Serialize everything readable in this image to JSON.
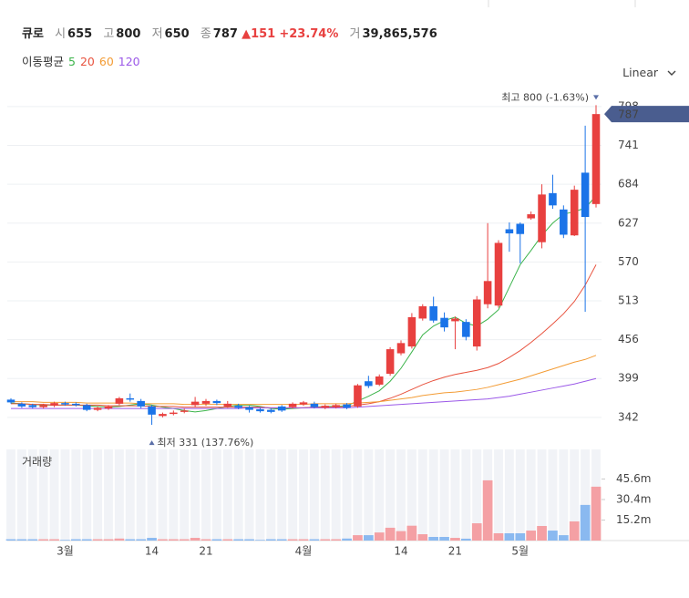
{
  "header": {
    "name": "큐로",
    "open_label": "시",
    "open": "655",
    "high_label": "고",
    "high": "800",
    "low_label": "저",
    "low": "650",
    "close_label": "종",
    "close": "787",
    "change": "151",
    "change_pct": "+23.74%",
    "volume_label": "거",
    "volume": "39,865,576"
  },
  "ma_label": "이동평균",
  "scale_toggle": "Linear",
  "chart_data": {
    "type": "candlestick",
    "categories": [
      null,
      null,
      null,
      null,
      null,
      "3월",
      null,
      null,
      null,
      null,
      null,
      null,
      null,
      "14",
      null,
      null,
      null,
      null,
      "21",
      null,
      null,
      null,
      null,
      null,
      null,
      null,
      null,
      "4월",
      null,
      null,
      null,
      null,
      null,
      null,
      null,
      null,
      "14",
      null,
      null,
      null,
      null,
      "21",
      null,
      null,
      null,
      null,
      null,
      "5월",
      null,
      null,
      null,
      null,
      null,
      null,
      null
    ],
    "open": [
      368,
      362,
      360,
      357,
      359,
      363,
      362,
      360,
      353,
      355,
      362,
      370,
      366,
      358,
      344,
      347,
      350,
      360,
      362,
      366,
      358,
      359,
      357,
      354,
      353,
      358,
      357,
      361,
      362,
      356,
      357,
      361,
      358,
      395,
      390,
      406,
      436,
      446,
      487,
      505,
      488,
      483,
      482,
      446,
      508,
      506,
      618,
      626,
      634,
      599,
      671,
      647,
      609,
      701,
      655
    ],
    "high": [
      370,
      364,
      362,
      362,
      365,
      365,
      364,
      362,
      358,
      360,
      372,
      377,
      369,
      360,
      349,
      352,
      355,
      372,
      369,
      368,
      366,
      362,
      359,
      356,
      355,
      360,
      364,
      366,
      365,
      361,
      362,
      363,
      391,
      403,
      405,
      445,
      455,
      495,
      508,
      519,
      496,
      490,
      486,
      520,
      627,
      602,
      628,
      628,
      644,
      684,
      698,
      653,
      682,
      770,
      800
    ],
    "low": [
      362,
      356,
      355,
      355,
      357,
      359,
      358,
      351,
      351,
      353,
      360,
      365,
      355,
      331,
      342,
      345,
      348,
      357,
      359,
      360,
      356,
      354,
      349,
      349,
      348,
      350,
      355,
      359,
      355,
      354,
      355,
      354,
      356,
      385,
      388,
      403,
      433,
      443,
      484,
      481,
      468,
      442,
      455,
      440,
      502,
      503,
      585,
      568,
      632,
      590,
      648,
      605,
      608,
      497,
      650
    ],
    "close": [
      364,
      358,
      357,
      360,
      363,
      361,
      360,
      353,
      356,
      358,
      370,
      368,
      358,
      346,
      347,
      349,
      352,
      365,
      366,
      363,
      362,
      356,
      353,
      351,
      350,
      352,
      362,
      364,
      357,
      359,
      360,
      356,
      389,
      388,
      402,
      442,
      451,
      489,
      505,
      484,
      474,
      487,
      460,
      515,
      542,
      598,
      612,
      611,
      640,
      669,
      653,
      610,
      676,
      636,
      787
    ],
    "up_color": "#e8403f",
    "down_color": "#1a73e8",
    "volume_up_color": "#f4a0a4",
    "volume_down_color": "#8ab9f0",
    "volume": [
      1,
      1,
      1,
      1,
      1,
      0.5,
      1,
      1,
      1,
      1,
      1.5,
      1,
      1,
      2,
      1,
      1,
      1,
      2,
      1,
      1,
      1,
      1,
      1,
      0.5,
      1,
      1,
      1,
      1,
      1,
      1,
      1,
      1.5,
      4,
      4,
      6,
      9.5,
      7,
      11,
      4.7,
      2.7,
      2.7,
      2,
      1.4,
      12.8,
      44.6,
      5.4,
      5.4,
      5.4,
      7.4,
      10.8,
      7.4,
      4,
      14.2,
      26.4,
      39.9
    ],
    "moving_averages": [
      {
        "name": "5",
        "color": "#3cb44b",
        "values": [
          363,
          362,
          361,
          360,
          360,
          360,
          360,
          359,
          358,
          357,
          358,
          360,
          362,
          360,
          357,
          355,
          352,
          350,
          352,
          355,
          358,
          360,
          360,
          358,
          355,
          354,
          355,
          356,
          357,
          358,
          358,
          359,
          366,
          373,
          381,
          395,
          414,
          438,
          463,
          476,
          484,
          489,
          480,
          476,
          486,
          500,
          533,
          566,
          587,
          609,
          627,
          640,
          644,
          649,
          667
        ]
      },
      {
        "name": "20",
        "color": "#e8533f",
        "values": [
          362,
          362,
          361,
          361,
          360,
          360,
          360,
          360,
          360,
          359,
          359,
          359,
          359,
          358,
          358,
          358,
          357,
          357,
          357,
          357,
          357,
          357,
          357,
          357,
          356,
          356,
          356,
          356,
          357,
          357,
          357,
          358,
          360,
          362,
          365,
          370,
          376,
          383,
          390,
          396,
          401,
          405,
          408,
          411,
          415,
          421,
          430,
          440,
          452,
          465,
          479,
          494,
          512,
          536,
          566
        ]
      },
      {
        "name": "60",
        "color": "#f39c35",
        "values": [
          365,
          365,
          365,
          364,
          364,
          364,
          364,
          363,
          363,
          363,
          363,
          363,
          362,
          362,
          362,
          362,
          361,
          361,
          361,
          361,
          361,
          361,
          361,
          361,
          361,
          361,
          361,
          361,
          362,
          362,
          362,
          362,
          363,
          364,
          365,
          367,
          369,
          371,
          374,
          376,
          378,
          379,
          381,
          383,
          386,
          390,
          394,
          398,
          403,
          408,
          413,
          418,
          423,
          427,
          433
        ]
      },
      {
        "name": "120",
        "color": "#9b59e8",
        "values": [
          355,
          355,
          355,
          355,
          355,
          355,
          355,
          355,
          355,
          355,
          355,
          355,
          355,
          355,
          355,
          355,
          355,
          355,
          355,
          355,
          355,
          355,
          356,
          356,
          356,
          356,
          356,
          356,
          356,
          356,
          356,
          356,
          357,
          358,
          359,
          360,
          361,
          362,
          363,
          364,
          365,
          366,
          367,
          368,
          369,
          371,
          373,
          376,
          379,
          382,
          385,
          388,
          391,
          395,
          399
        ]
      }
    ],
    "ylim": [
      303,
      834
    ],
    "yticks": [
      342,
      399,
      456,
      513,
      570,
      627,
      684,
      741,
      798
    ],
    "grid": true,
    "high_annotation": "최고 800 (-1.63%)",
    "low_annotation": "최저 331 (137.76%)",
    "last_price": 787,
    "last_price_color": "#4a5d8f",
    "volume_title": "거래량",
    "volume_ylim": [
      0,
      67.5
    ],
    "volume_yticks": [
      {
        "value": 15.2,
        "label": "15.2m"
      },
      {
        "value": 30.4,
        "label": "30.4m"
      },
      {
        "value": 45.6,
        "label": "45.6m"
      }
    ]
  }
}
